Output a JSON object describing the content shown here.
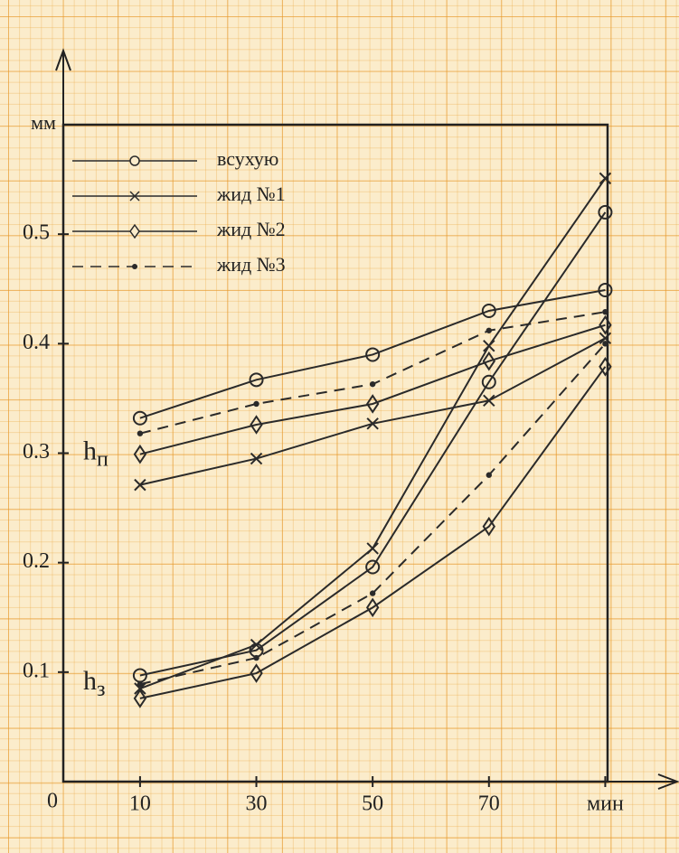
{
  "chart_data": {
    "type": "line",
    "y_label": "мм",
    "origin_label": "0",
    "x": [
      10,
      30,
      50,
      70,
      90
    ],
    "xlim": [
      -3.2,
      90.4
    ],
    "xticks": [
      10,
      30,
      50,
      70,
      {
        "value": 90,
        "label": "мин"
      }
    ],
    "ylim": [
      0,
      0.6
    ],
    "yticks": [
      0.1,
      0.2,
      0.3,
      0.4,
      0.5
    ],
    "color": "#2a2a2a",
    "legend": [
      {
        "name": "всухую",
        "marker": "circle",
        "dashed": false
      },
      {
        "name": "жид №1",
        "marker": "cross",
        "dashed": false
      },
      {
        "name": "жид №2",
        "marker": "diamond",
        "dashed": false
      },
      {
        "name": "жид №3",
        "marker": "dot",
        "dashed": true
      }
    ],
    "groups": [
      {
        "label": "h",
        "sub": "п",
        "label_value": 0.3,
        "series": [
          {
            "values": [
              0.332,
              0.367,
              0.39,
              0.43,
              0.449
            ]
          },
          {
            "values": [
              0.271,
              0.295,
              0.327,
              0.348,
              0.405
            ]
          },
          {
            "values": [
              0.299,
              0.326,
              0.345,
              0.384,
              0.417
            ]
          },
          {
            "values": [
              0.318,
              0.345,
              0.363,
              0.412,
              0.429
            ]
          }
        ]
      },
      {
        "label": "h",
        "sub": "з",
        "label_value": 0.09,
        "series": [
          {
            "values": [
              0.097,
              0.12,
              0.196,
              0.365,
              0.52
            ]
          },
          {
            "values": [
              0.085,
              0.125,
              0.213,
              0.398,
              0.551
            ]
          },
          {
            "values": [
              0.076,
              0.099,
              0.159,
              0.233,
              0.379
            ]
          },
          {
            "values": [
              0.089,
              0.113,
              0.172,
              0.28,
              0.4
            ]
          }
        ]
      }
    ]
  }
}
